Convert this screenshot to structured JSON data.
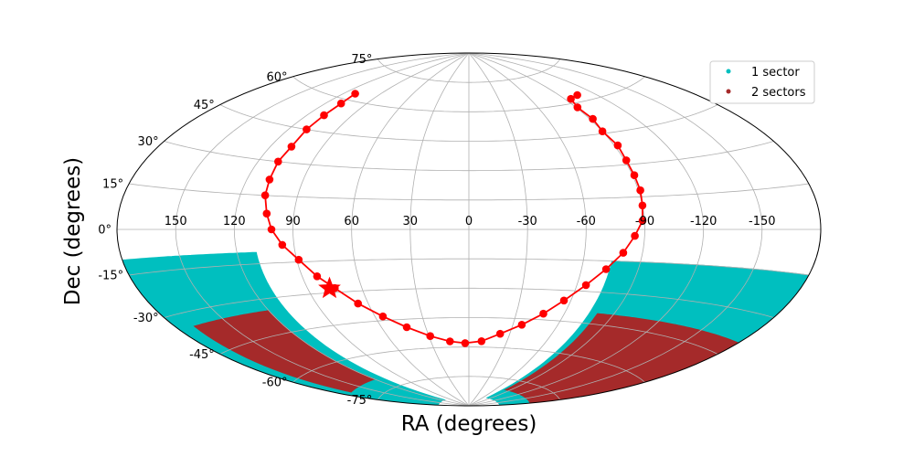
{
  "chart_data": {
    "type": "scatter",
    "projection": "aitoff",
    "xlabel": "RA (degrees)",
    "ylabel": "Dec (degrees)",
    "grid": true,
    "legend_position": "top-right",
    "ra_ticks": [
      150,
      120,
      90,
      60,
      30,
      0,
      -30,
      -60,
      -90,
      -120,
      -150
    ],
    "dec_ticks": [
      -75,
      -60,
      -45,
      -30,
      -15,
      0,
      15,
      30,
      45,
      60,
      75
    ],
    "colors": {
      "one_sector": "#00bfbf",
      "two_sectors": "#a52a2a",
      "ecliptic": "#ff0000",
      "grid": "#b0b0b0"
    },
    "series": [
      {
        "name": "1 sector",
        "color": "#00bfbf",
        "kind": "coverage-region",
        "regions": [
          {
            "ra_range": [
              110,
              180
            ],
            "dec_range": [
              -85,
              -10
            ]
          },
          {
            "ra_range": [
              -180,
              -75
            ],
            "dec_range": [
              -85,
              -15
            ]
          }
        ]
      },
      {
        "name": "2 sectors",
        "color": "#a52a2a",
        "kind": "coverage-region",
        "regions": [
          {
            "ra_range": [
              120,
              170
            ],
            "dec_range": [
              -70,
              -35
            ]
          },
          {
            "ra_range": [
              -180,
              -80
            ],
            "dec_range": [
              -80,
              -40
            ]
          }
        ]
      }
    ],
    "path": {
      "color": "#ff0000",
      "points": [
        [
          111,
          63
        ],
        [
          109,
          58
        ],
        [
          109,
          52
        ],
        [
          109,
          45
        ],
        [
          108,
          37
        ],
        [
          109,
          30
        ],
        [
          108,
          22
        ],
        [
          107,
          15
        ],
        [
          104,
          7
        ],
        [
          101,
          0
        ],
        [
          96,
          -7
        ],
        [
          89,
          -14
        ],
        [
          82,
          -22
        ],
        [
          75,
          -28
        ],
        [
          66,
          -36
        ],
        [
          55,
          -43
        ],
        [
          43,
          -49
        ],
        [
          29,
          -54
        ],
        [
          15,
          -57
        ],
        [
          3,
          -58
        ],
        [
          -10,
          -57
        ],
        [
          -23,
          -53
        ],
        [
          -36,
          -48
        ],
        [
          -47,
          -42
        ],
        [
          -56,
          -35
        ],
        [
          -65,
          -27
        ],
        [
          -73,
          -19
        ],
        [
          -80,
          -11
        ],
        [
          -85,
          -3
        ],
        [
          -89,
          4
        ],
        [
          -90,
          11
        ],
        [
          -91,
          18
        ],
        [
          -91,
          25
        ],
        [
          -91,
          32
        ],
        [
          -92,
          39
        ],
        [
          -90,
          46
        ],
        [
          -92,
          52
        ],
        [
          -91,
          58
        ],
        [
          -95,
          62
        ],
        [
          -105,
          63
        ]
      ]
    },
    "target": {
      "ra": 78,
      "dec": -28,
      "marker": "star",
      "color": "#ff0000"
    }
  },
  "legend": {
    "items": [
      {
        "label": "1 sector",
        "color": "#00bfbf"
      },
      {
        "label": "2 sectors",
        "color": "#a52a2a"
      }
    ]
  }
}
